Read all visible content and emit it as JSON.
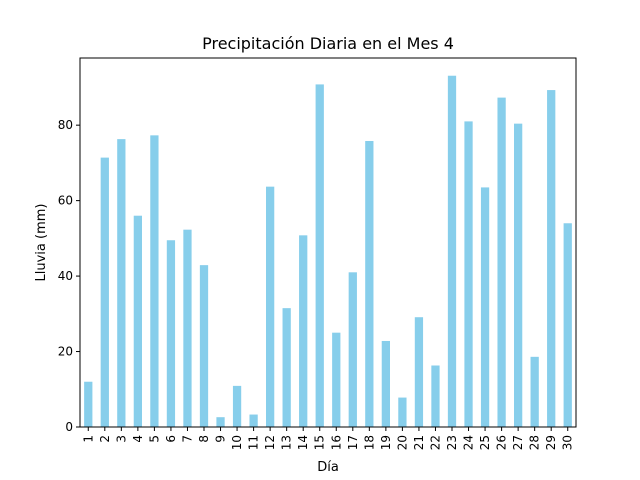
{
  "chart_data": {
    "type": "bar",
    "title": "Precipitación Diaria en el Mes 4",
    "xlabel": "Día",
    "ylabel": "Lluvia (mm)",
    "ylim": [
      0,
      97.8
    ],
    "yticks": [
      "0",
      "20",
      "40",
      "60",
      "80"
    ],
    "grid": false,
    "bar_color": "#87ceeb",
    "categories": [
      "1",
      "2",
      "3",
      "4",
      "5",
      "6",
      "7",
      "8",
      "9",
      "10",
      "11",
      "12",
      "13",
      "14",
      "15",
      "16",
      "17",
      "18",
      "19",
      "20",
      "21",
      "22",
      "23",
      "24",
      "25",
      "26",
      "27",
      "28",
      "29",
      "30"
    ],
    "values": [
      12.0,
      71.4,
      76.3,
      56.0,
      77.3,
      49.5,
      52.3,
      42.9,
      2.6,
      10.9,
      3.3,
      63.7,
      31.5,
      50.8,
      90.8,
      25.0,
      41.0,
      75.8,
      22.8,
      7.8,
      29.1,
      16.3,
      93.1,
      81.0,
      63.5,
      87.3,
      80.4,
      18.6,
      89.3,
      54.0
    ]
  }
}
